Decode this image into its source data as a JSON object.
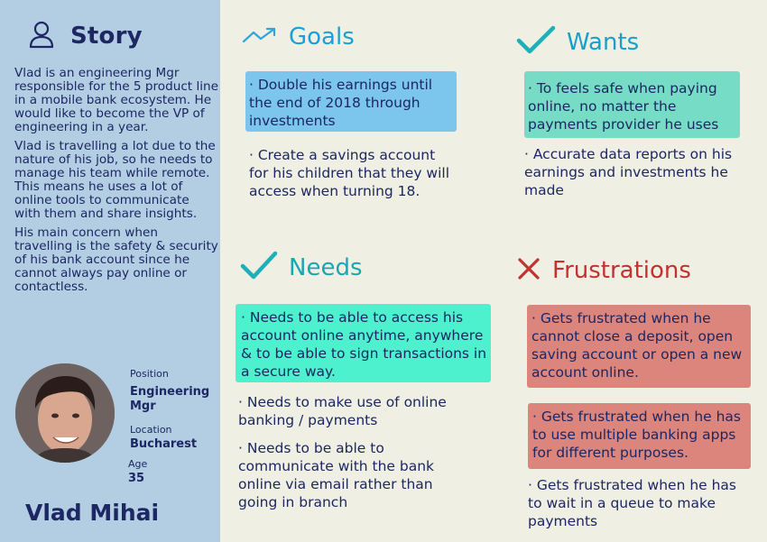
{
  "story": {
    "title": "Story",
    "paragraphs": [
      "Vlad is an engineering Mgr responsible for the 5 product line in a mobile bank ecosystem. He would like to become the VP of engineering in a year.",
      "Vlad is travelling a lot due to the nature of his job, so he needs to manage his team while remote.  This means he uses a lot of online tools to communicate with them and share insights.",
      "His main concern when travelling is the safety & security of his bank account since he cannot always pay online or contactless."
    ]
  },
  "profile": {
    "position_label": "Position",
    "position_value": "Engineering Mgr",
    "location_label": "Location",
    "location_value": "Bucharest",
    "age_label": "Age",
    "age_value": "35",
    "name": "Vlad Mihai"
  },
  "goals": {
    "title": "Goals",
    "items": [
      "· Double his earnings until the end of 2018 through investments",
      "· Create a savings account for his children that they will access when turning 18."
    ]
  },
  "wants": {
    "title": "Wants",
    "items": [
      "· To feels safe when paying online, no matter the payments provider he uses",
      "· Accurate data reports on his earnings and investments he made"
    ]
  },
  "needs": {
    "title": "Needs",
    "items": [
      "· Needs to be able to access his  account online anytime, anywhere & to be able to sign transactions in a secure way.",
      "· Needs to make use of online banking / payments",
      "· Needs to be able to communicate with the bank online via email  rather than going in branch"
    ]
  },
  "frustrations": {
    "title": "Frustrations",
    "items": [
      "· Gets frustrated when he cannot close a deposit, open saving account  or open a new account  online.",
      "· Gets frustrated when he has to use multiple banking apps for different purposes.",
      "· Gets frustrated when he has to wait in a queue to make payments"
    ]
  },
  "colors": {
    "sidebar": "#b3cee3",
    "background": "#f0efe4",
    "navy": "#1c2763",
    "goals_highlight": "#7cc5ec",
    "wants_highlight": "#77dcc6",
    "needs_highlight": "#4ef1cd",
    "frustrations_highlight": "#db857c",
    "check_icon": "#1eb0b8",
    "x_icon": "#c2322e"
  },
  "icons": [
    "user-icon",
    "trend-up-icon",
    "checkmark-icon",
    "x-icon"
  ]
}
